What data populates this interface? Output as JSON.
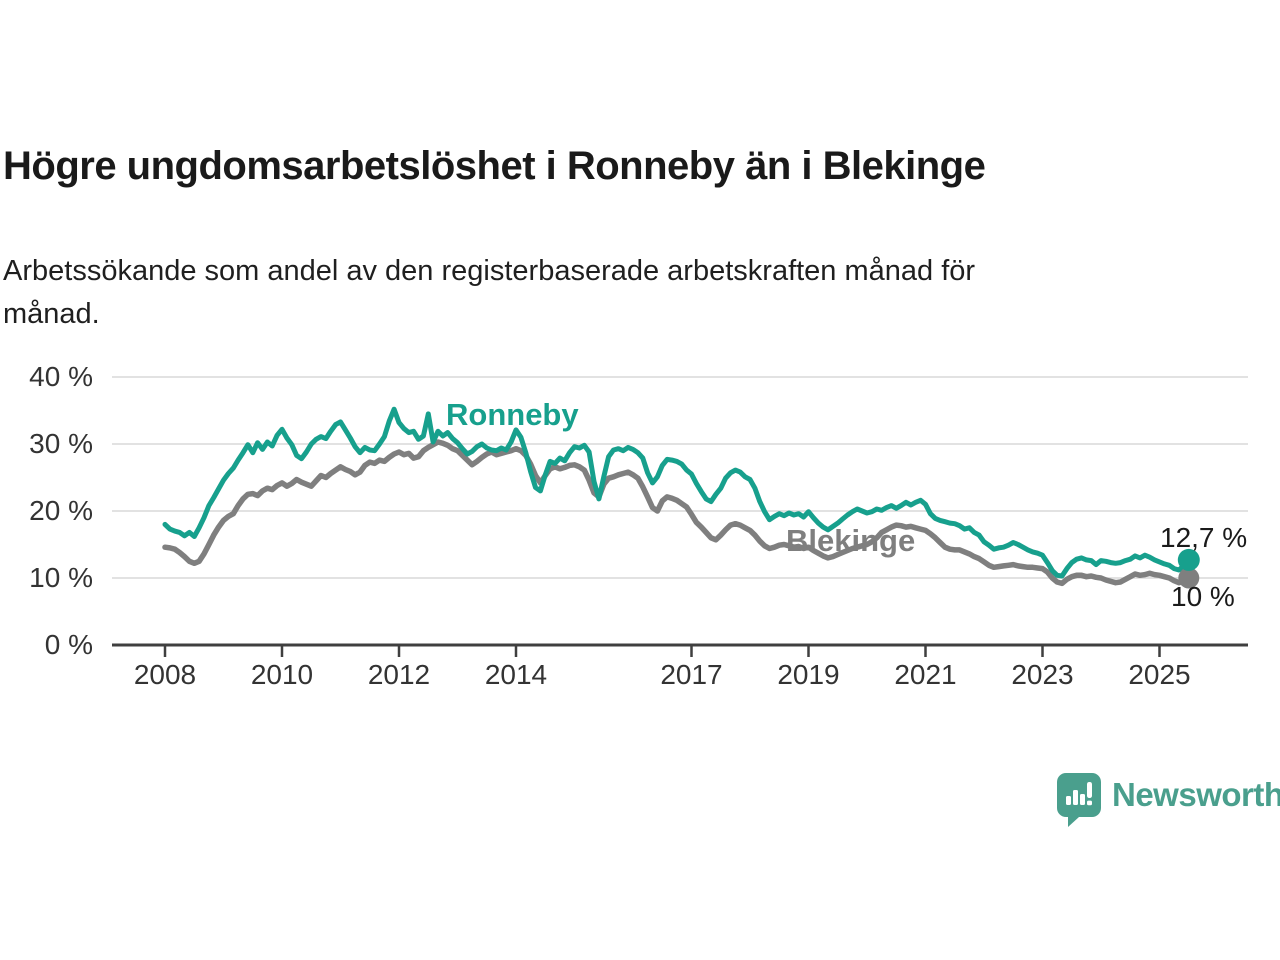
{
  "header": {
    "title": "Högre ungdomsarbetslöshet i Ronneby än i Blekinge",
    "subtitle_line1": "Arbetssökande som andel av den registerbaserade arbetskraften månad för",
    "subtitle_line2": "månad."
  },
  "colors": {
    "grid": "#d9d9d9",
    "axis": "#3f3f3f",
    "tick_text": "#333333",
    "ronneby_teal": "#17a08d",
    "blekinge_gray": "#7f7f7f",
    "brand_teal": "#4a9f8d"
  },
  "chart_data": {
    "type": "line",
    "title": "Högre ungdomsarbetslöshet i Ronneby än i Blekinge",
    "subtitle": "Arbetssökande som andel av den registerbaserade arbetskraften månad för månad.",
    "unit": "%",
    "xlabel": "",
    "ylabel": "",
    "grid": true,
    "legend_position": "inline-labels",
    "x_axis": {
      "range": [
        2007.9,
        2026.6
      ],
      "ticks": [
        {
          "value": 2008,
          "label": "2008"
        },
        {
          "value": 2010,
          "label": "2010"
        },
        {
          "value": 2012,
          "label": "2012"
        },
        {
          "value": 2014,
          "label": "2014"
        },
        {
          "value": 2017,
          "label": "2017"
        },
        {
          "value": 2019,
          "label": "2019"
        },
        {
          "value": 2021,
          "label": "2021"
        },
        {
          "value": 2023,
          "label": "2023"
        },
        {
          "value": 2025,
          "label": "2025"
        }
      ]
    },
    "y_axis": {
      "range": [
        0,
        42
      ],
      "ticks": [
        {
          "value": 0,
          "label": "0 %"
        },
        {
          "value": 10,
          "label": "10 %"
        },
        {
          "value": 20,
          "label": "20 %"
        },
        {
          "value": 30,
          "label": "30 %"
        },
        {
          "value": 40,
          "label": "40 %"
        }
      ]
    },
    "series": [
      {
        "name": "Blekinge",
        "color": "#7f7f7f",
        "end_label": "10 %",
        "end_value": 10.0,
        "x_start": 2008.0,
        "step": "1 month",
        "values": [
          14.6,
          14.5,
          14.3,
          13.8,
          13.2,
          12.5,
          12.2,
          12.5,
          13.6,
          15.0,
          16.4,
          17.6,
          18.6,
          19.2,
          19.6,
          20.8,
          21.8,
          22.5,
          22.6,
          22.3,
          23.0,
          23.4,
          23.2,
          23.8,
          24.2,
          23.7,
          24.1,
          24.7,
          24.3,
          24.0,
          23.7,
          24.5,
          25.3,
          25.0,
          25.6,
          26.1,
          26.6,
          26.2,
          25.9,
          25.4,
          25.8,
          26.8,
          27.3,
          27.1,
          27.6,
          27.4,
          28.0,
          28.5,
          28.8,
          28.4,
          28.6,
          27.9,
          28.1,
          29.0,
          29.5,
          29.9,
          30.3,
          30.1,
          29.8,
          29.3,
          29.0,
          28.3,
          27.6,
          26.9,
          27.4,
          28.0,
          28.5,
          28.8,
          28.4,
          28.6,
          28.8,
          29.0,
          29.3,
          29.0,
          28.3,
          27.0,
          25.3,
          24.2,
          25.3,
          26.3,
          26.6,
          26.3,
          26.5,
          26.8,
          26.9,
          26.6,
          26.1,
          24.6,
          22.7,
          22.1,
          24.0,
          24.9,
          25.1,
          25.4,
          25.6,
          25.8,
          25.4,
          24.9,
          23.6,
          22.1,
          20.5,
          20.0,
          21.5,
          22.1,
          21.9,
          21.6,
          21.1,
          20.6,
          19.5,
          18.3,
          17.6,
          16.8,
          16.0,
          15.7,
          16.4,
          17.2,
          17.9,
          18.1,
          17.9,
          17.5,
          17.1,
          16.4,
          15.5,
          14.8,
          14.4,
          14.6,
          14.9,
          15.0,
          14.8,
          14.6,
          14.7,
          14.4,
          14.6,
          14.1,
          13.7,
          13.3,
          13.0,
          13.2,
          13.5,
          13.8,
          14.1,
          14.4,
          14.6,
          14.8,
          15.0,
          15.4,
          16.0,
          16.8,
          17.2,
          17.6,
          17.9,
          17.8,
          17.6,
          17.7,
          17.5,
          17.3,
          17.1,
          16.6,
          16.0,
          15.3,
          14.6,
          14.3,
          14.2,
          14.2,
          13.9,
          13.6,
          13.2,
          12.9,
          12.4,
          11.9,
          11.6,
          11.7,
          11.8,
          11.9,
          12.0,
          11.8,
          11.7,
          11.6,
          11.6,
          11.5,
          11.4,
          10.9,
          10.0,
          9.4,
          9.2,
          9.8,
          10.2,
          10.4,
          10.4,
          10.2,
          10.3,
          10.1,
          10.0,
          9.7,
          9.5,
          9.3,
          9.4,
          9.8,
          10.2,
          10.6,
          10.4,
          10.5,
          10.7,
          10.5,
          10.4,
          10.2,
          10.0,
          9.6,
          9.3,
          9.6,
          10.0
        ]
      },
      {
        "name": "Ronneby",
        "color": "#17a08d",
        "end_label": "12,7 %",
        "end_value": 12.7,
        "x_start": 2008.0,
        "step": "1 month",
        "values": [
          18.0,
          17.3,
          17.0,
          16.8,
          16.3,
          16.8,
          16.2,
          17.5,
          19.0,
          20.8,
          22.0,
          23.3,
          24.6,
          25.6,
          26.4,
          27.6,
          28.7,
          29.9,
          28.7,
          30.2,
          29.2,
          30.3,
          29.7,
          31.3,
          32.2,
          30.9,
          29.9,
          28.3,
          27.8,
          28.8,
          30.0,
          30.7,
          31.1,
          30.8,
          31.9,
          32.9,
          33.3,
          32.1,
          30.9,
          29.6,
          28.7,
          29.5,
          29.1,
          29.0,
          30.0,
          31.1,
          33.4,
          35.2,
          33.2,
          32.3,
          31.7,
          31.9,
          30.7,
          31.2,
          34.5,
          30.3,
          31.9,
          31.2,
          31.7,
          30.8,
          30.2,
          29.3,
          28.5,
          28.9,
          29.6,
          30.0,
          29.4,
          29.1,
          29.0,
          29.4,
          29.1,
          30.3,
          32.1,
          31.0,
          28.7,
          25.9,
          23.5,
          23.0,
          25.4,
          27.4,
          27.1,
          27.9,
          27.5,
          28.7,
          29.6,
          29.4,
          29.8,
          28.8,
          24.4,
          21.8,
          25.1,
          28.1,
          29.1,
          29.3,
          29.0,
          29.5,
          29.2,
          28.7,
          27.9,
          25.7,
          24.2,
          25.1,
          26.8,
          27.7,
          27.6,
          27.4,
          27.0,
          26.1,
          25.5,
          24.1,
          22.9,
          21.8,
          21.4,
          22.5,
          23.4,
          24.9,
          25.7,
          26.1,
          25.8,
          25.1,
          24.7,
          23.4,
          21.4,
          19.9,
          18.7,
          19.2,
          19.6,
          19.3,
          19.7,
          19.4,
          19.6,
          19.1,
          19.9,
          19.0,
          18.2,
          17.6,
          17.2,
          17.7,
          18.2,
          18.8,
          19.4,
          19.9,
          20.3,
          20.0,
          19.7,
          19.9,
          20.3,
          20.1,
          20.5,
          20.8,
          20.4,
          20.8,
          21.3,
          20.9,
          21.3,
          21.6,
          21.0,
          19.6,
          18.9,
          18.6,
          18.4,
          18.2,
          18.1,
          17.8,
          17.3,
          17.5,
          16.8,
          16.4,
          15.4,
          14.9,
          14.3,
          14.5,
          14.6,
          14.9,
          15.3,
          15.0,
          14.6,
          14.2,
          13.9,
          13.7,
          13.4,
          12.3,
          11.1,
          10.4,
          10.3,
          11.4,
          12.3,
          12.8,
          13.0,
          12.7,
          12.6,
          12.0,
          12.6,
          12.5,
          12.3,
          12.2,
          12.3,
          12.6,
          12.8,
          13.3,
          13.0,
          13.4,
          13.1,
          12.7,
          12.4,
          12.1,
          11.9,
          11.4,
          11.2,
          11.9,
          12.7
        ]
      }
    ]
  },
  "footer": {
    "logo_text": "Newsworthy",
    "logo_icon": "newsworthy-speech-bubble-bar-chart-icon"
  }
}
